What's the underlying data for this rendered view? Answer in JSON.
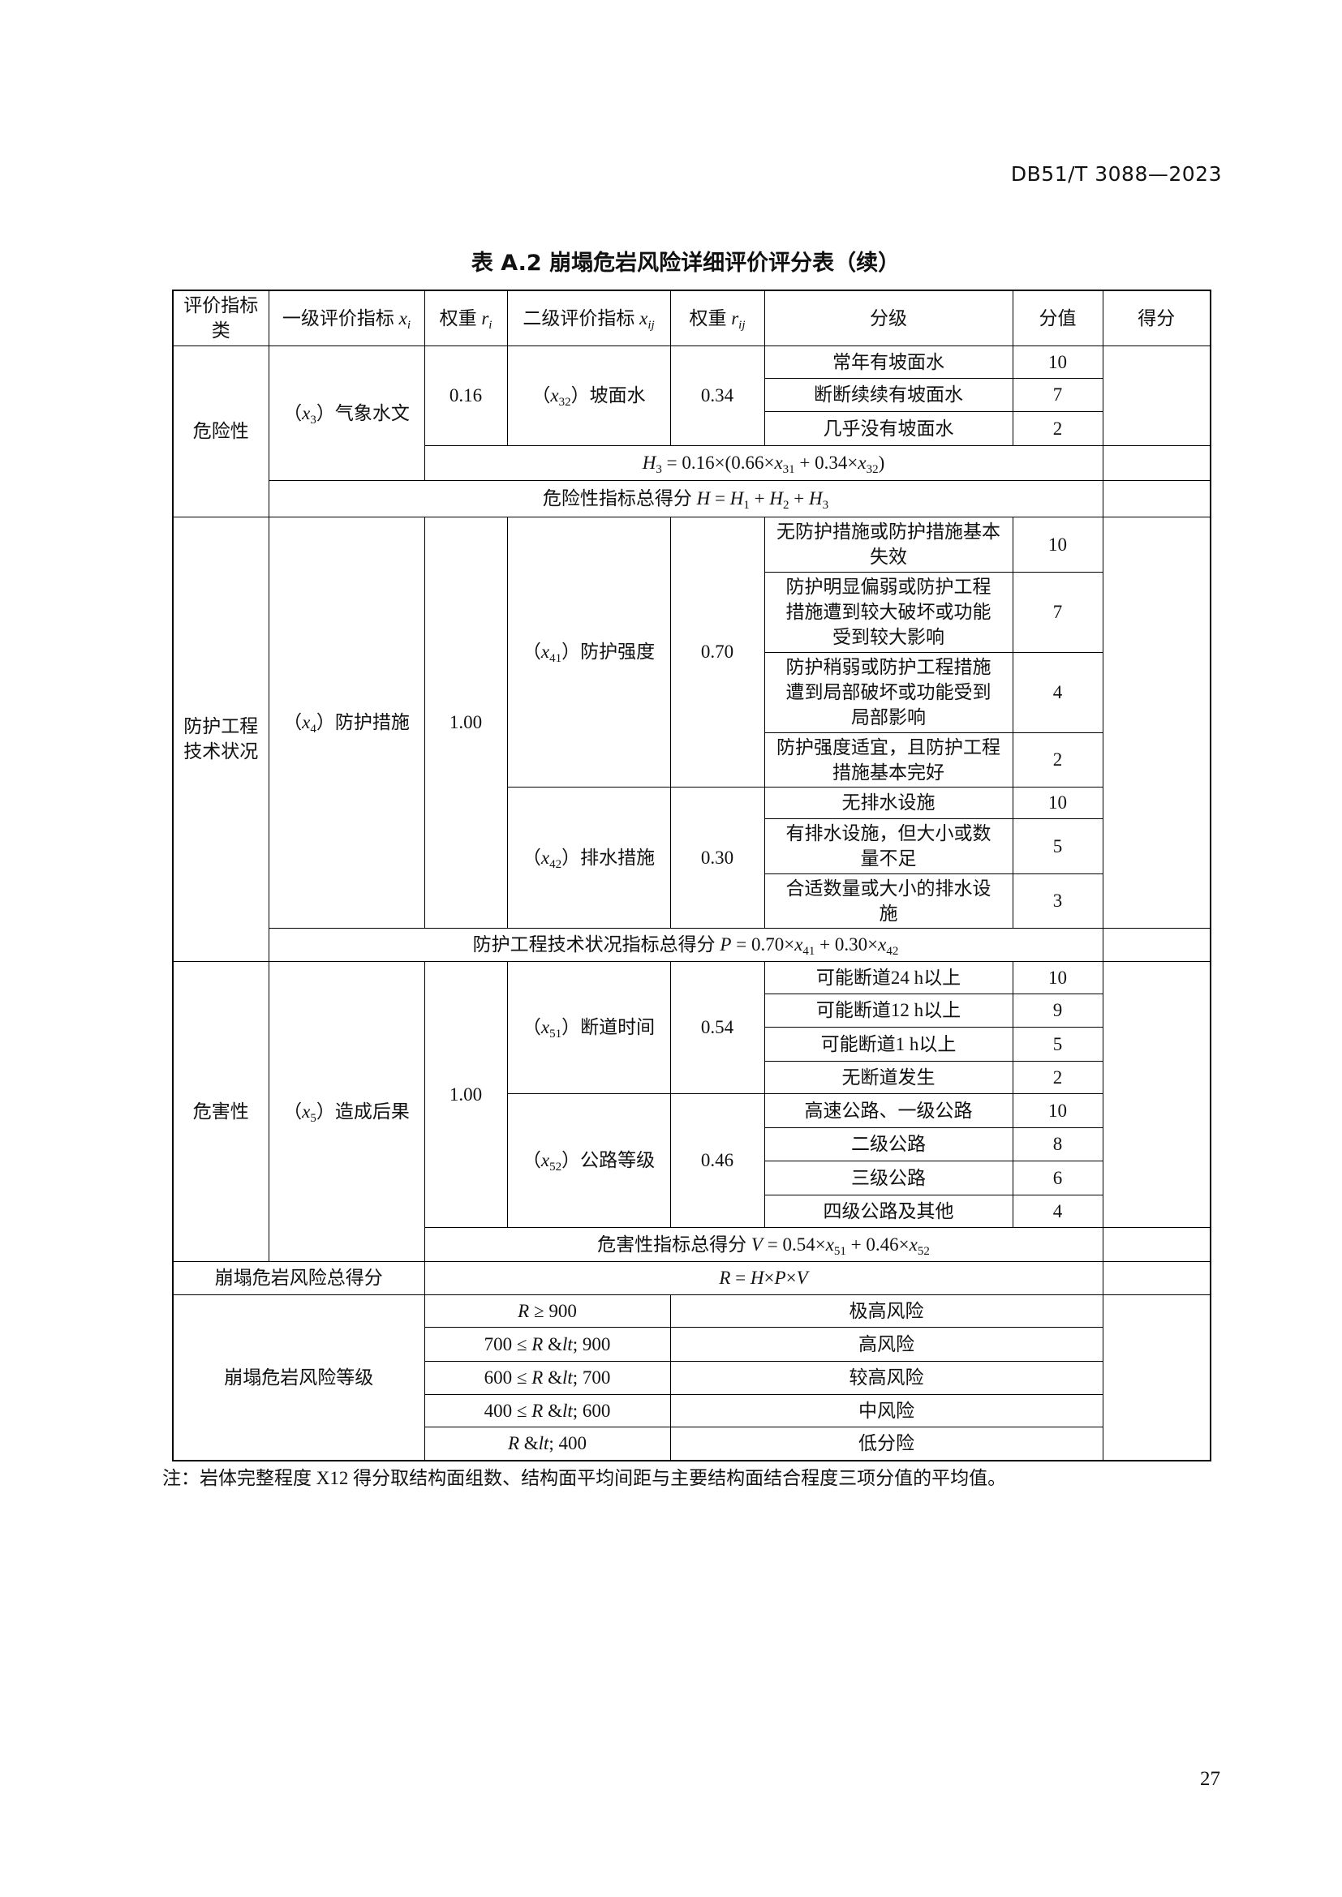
{
  "header": {
    "doc_code": "DB51/T 3088—2023"
  },
  "title": "表 A.2  崩塌危岩风险详细评价评分表（续）",
  "table": {
    "headers": [
      "评价指标类",
      "一级评价指标 x_i",
      "权重 r_i",
      "二级评价指标 x_ij",
      "权重 r_ij",
      "分级",
      "分值",
      "得分"
    ],
    "hazard": {
      "category": "危险性",
      "primary": "（x_3）气象水文",
      "weight": "0.16",
      "secondary": "（x_32）坡面水",
      "sub_weight": "0.34",
      "grades": [
        {
          "label": "常年有坡面水",
          "score": "10"
        },
        {
          "label": "断断续续有坡面水",
          "score": "7"
        },
        {
          "label": "几乎没有坡面水",
          "score": "2"
        }
      ],
      "formula": "H_3 = 0.16×(0.66×x_31 + 0.34×x_32)",
      "total": "危险性指标总得分 H = H_1 + H_2 + H_3"
    },
    "protection": {
      "category": "防护工程技术状况",
      "primary": "（x_4）防护措施",
      "weight": "1.00",
      "items": [
        {
          "name": "（x_41）防护强度",
          "weight": "0.70",
          "grades": [
            {
              "label": "无防护措施或防护措施基本失效",
              "score": "10"
            },
            {
              "label": "防护明显偏弱或防护工程措施遭到较大破坏或功能受到较大影响",
              "score": "7"
            },
            {
              "label": "防护稍弱或防护工程措施遭到局部破坏或功能受到局部影响",
              "score": "4"
            },
            {
              "label": "防护强度适宜，且防护工程措施基本完好",
              "score": "2"
            }
          ]
        },
        {
          "name": "（x_42）排水措施",
          "weight": "0.30",
          "grades": [
            {
              "label": "无排水设施",
              "score": "10"
            },
            {
              "label": "有排水设施，但大小或数量不足",
              "score": "5"
            },
            {
              "label": "合适数量或大小的排水设施",
              "score": "3"
            }
          ]
        }
      ],
      "total": "防护工程技术状况指标总得分 P = 0.70×x_41 + 0.30×x_42"
    },
    "harm": {
      "category": "危害性",
      "primary": "（x_5）造成后果",
      "weight": "1.00",
      "items": [
        {
          "name": "（x_51）断道时间",
          "weight": "0.54",
          "grades": [
            {
              "label": "可能断道24 h以上",
              "score": "10"
            },
            {
              "label": "可能断道12 h以上",
              "score": "9"
            },
            {
              "label": "可能断道1 h以上",
              "score": "5"
            },
            {
              "label": "无断道发生",
              "score": "2"
            }
          ]
        },
        {
          "name": "（x_52）公路等级",
          "weight": "0.46",
          "grades": [
            {
              "label": "高速公路、一级公路",
              "score": "10"
            },
            {
              "label": "二级公路",
              "score": "8"
            },
            {
              "label": "三级公路",
              "score": "6"
            },
            {
              "label": "四级公路及其他",
              "score": "4"
            }
          ]
        }
      ],
      "total": "危害性指标总得分 V = 0.54×x_51 + 0.46×x_52"
    },
    "risk_total": {
      "label": "崩塌危岩风险总得分",
      "formula": "R = H×P×V"
    },
    "risk_level": {
      "label": "崩塌危岩风险等级",
      "levels": [
        {
          "range": "R ≥ 900",
          "level": "极高风险"
        },
        {
          "range": "700 ≤ R < 900",
          "level": "高风险"
        },
        {
          "range": "600 ≤ R < 700",
          "level": "较高风险"
        },
        {
          "range": "400 ≤ R < 600",
          "level": "中风险"
        },
        {
          "range": "R < 400",
          "level": "低分险"
        }
      ]
    }
  },
  "note": "注：岩体完整程度 X12 得分取结构面组数、结构面平均间距与主要结构面结合程度三项分值的平均值。",
  "page_number": "27"
}
